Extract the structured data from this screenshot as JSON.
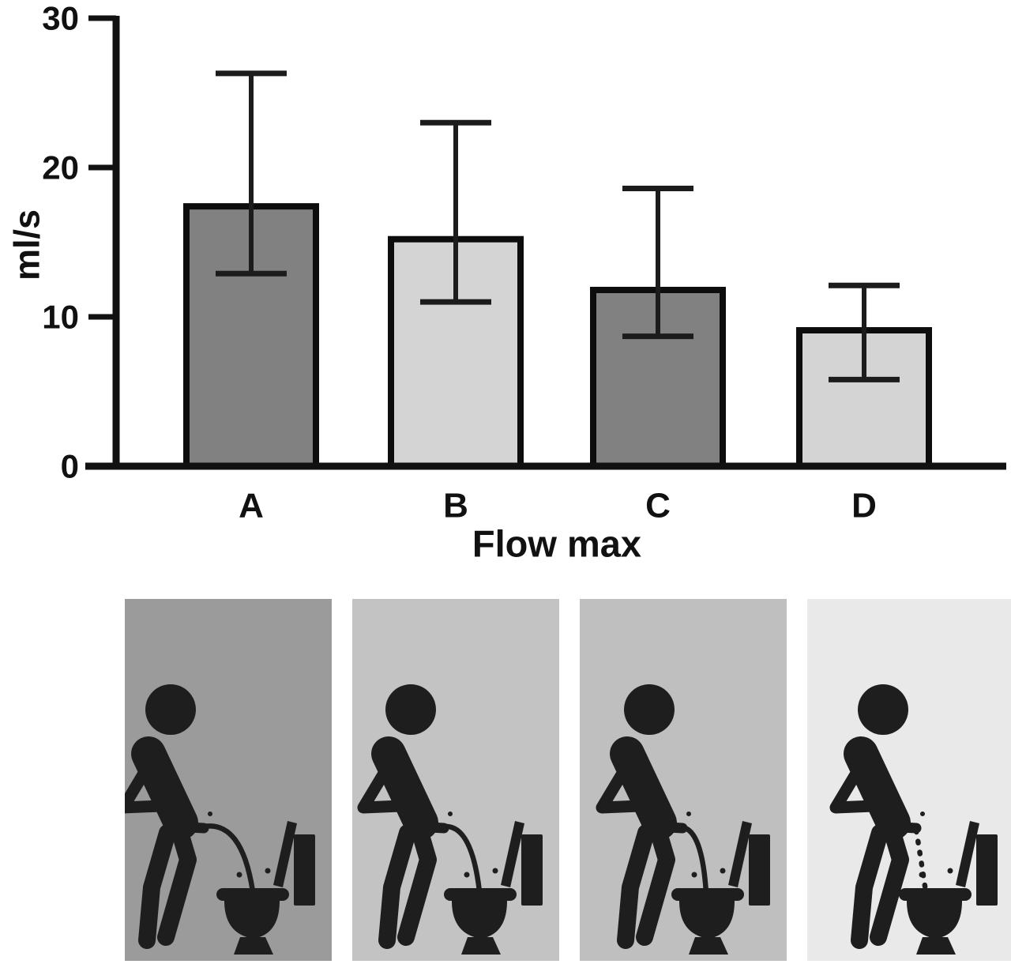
{
  "figure": {
    "background": "#ffffff",
    "text_color": "#111111"
  },
  "chart_data": {
    "type": "bar",
    "categories": [
      "A",
      "B",
      "C",
      "D"
    ],
    "values": [
      17.4,
      15.2,
      11.8,
      9.1
    ],
    "error_upper": [
      26.3,
      23.0,
      18.6,
      12.1
    ],
    "error_lower": [
      12.9,
      11.0,
      8.7,
      5.8
    ],
    "title": "",
    "xlabel": "Flow max",
    "ylabel": "ml/s",
    "ylim": [
      0,
      30
    ],
    "yticks": [
      0,
      10,
      20,
      30
    ],
    "grid": false,
    "legend": false,
    "bar_colors": [
      "#818181",
      "#d4d4d4",
      "#818181",
      "#d4d4d4"
    ],
    "bar_border_color": "#0d0d0d",
    "axis_color": "#111111",
    "error_bar_color": "#1c1c1c"
  },
  "pictograms": {
    "glyph_color": "#1e1e1e",
    "panels": [
      {
        "category": "A",
        "bg": "#9b9b9b",
        "icon": "man-urinating-far-from-toilet-icon",
        "stream": "long-arc"
      },
      {
        "category": "B",
        "bg": "#c3c3c3",
        "icon": "man-urinating-medium-distance-icon",
        "stream": "medium-arc"
      },
      {
        "category": "C",
        "bg": "#bfbfbf",
        "icon": "man-urinating-close-to-toilet-icon",
        "stream": "short-arc"
      },
      {
        "category": "D",
        "bg": "#e9e9e9",
        "icon": "man-urinating-next-to-toilet-icon",
        "stream": "dotted-drip"
      }
    ]
  }
}
